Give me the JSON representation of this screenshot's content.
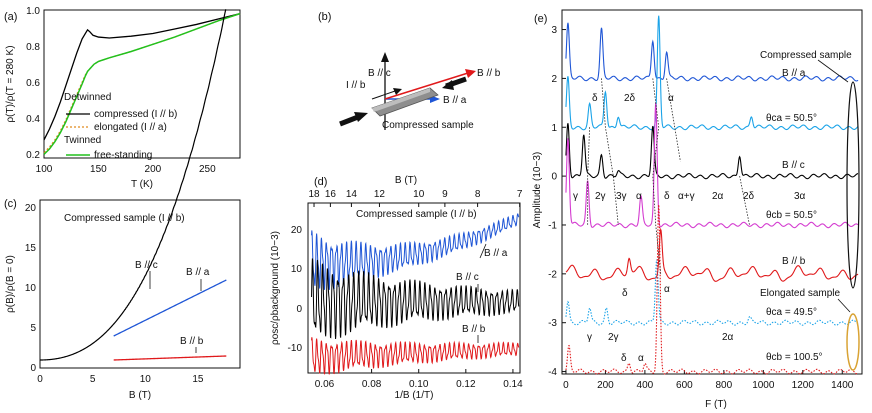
{
  "panels": {
    "a": {
      "tag": "(a)",
      "ylabel": "ρ(T)/ρ(T = 280 K)",
      "xlabel": "T (K)",
      "xticks": [
        "100",
        "150",
        "200",
        "250"
      ],
      "yticks": [
        "0.2",
        "0.4",
        "0.6",
        "0.8",
        "1.0"
      ],
      "legend": {
        "group1": "Detwinned",
        "l1": "compressed (I // b)",
        "l2": "elongated (I // a)",
        "group2": "Twinned",
        "l3": "free-standing"
      }
    },
    "b": {
      "tag": "(b)",
      "label_bc": "B // c",
      "label_bb": "B // b",
      "label_ba": "B // a",
      "label_ib": "I // b",
      "caption": "Compressed sample"
    },
    "c": {
      "tag": "(c)",
      "title": "Compressed sample (I // b)",
      "ylabel": "ρ(B)/ρ(B = 0)",
      "xlabel": "B (T)",
      "xticks": [
        "0",
        "5",
        "10",
        "15"
      ],
      "yticks": [
        "0",
        "5",
        "10",
        "15",
        "20"
      ],
      "lab_c": "B // c",
      "lab_a": "B // a",
      "lab_b": "B // b"
    },
    "d": {
      "tag": "(d)",
      "top_label": "B (T)",
      "top_ticks": [
        "18",
        "16",
        "14",
        "12",
        "10",
        "9",
        "8",
        "7"
      ],
      "title": "Compressed sample (I // b)",
      "ylabel": "ρosc/ρbackground (10−3)",
      "xlabel": "1/B (1/T)",
      "xticks": [
        "0.06",
        "0.08",
        "0.10",
        "0.12",
        "0.14"
      ],
      "yticks": [
        "-10",
        "0",
        "10",
        "20"
      ],
      "lab_a": "B // a",
      "lab_c": "B // c",
      "lab_b": "B // b"
    },
    "e": {
      "tag": "(e)",
      "ylabel": "Amplitude (10−3)",
      "xlabel": "F (T)",
      "xticks": [
        "0",
        "200",
        "400",
        "600",
        "800",
        "1000",
        "1200",
        "1400"
      ],
      "yticks": [
        "3",
        "2",
        "1",
        "0",
        "-1",
        "-2",
        "-3",
        "-4"
      ],
      "compressed": "Compressed sample",
      "elongated": "Elongated sample",
      "ba": "B  // a",
      "bc": "B  // c",
      "bb": "B  // b",
      "t1": "θca = 50.5°",
      "t2": "θcb = 50.5°",
      "t3": "θca = 49.5°",
      "t4": "θcb = 100.5°",
      "peaks": {
        "d1": "δ",
        "d2": "2δ",
        "a1": "α",
        "g1": "γ",
        "g2": "2γ",
        "g3": "3γ",
        "a2": "α",
        "d3": "δ",
        "ag": "α+γ",
        "a3": "2α",
        "d4": "2δ",
        "a4": "3α",
        "d5": "δ",
        "a5": "α",
        "g4": "γ",
        "g5": "2γ",
        "a6": "2α",
        "d6": "δ",
        "a7": "α"
      }
    }
  },
  "chart_data": [
    {
      "type": "line",
      "panel": "a",
      "xlabel": "T (K)",
      "ylabel": "ρ(T)/ρ(T = 280 K)",
      "xlim": [
        100,
        280
      ],
      "ylim": [
        0.2,
        1.02
      ],
      "series": [
        {
          "name": "compressed (I // b)",
          "color": "#000000",
          "x": [
            100,
            105,
            110,
            115,
            120,
            125,
            130,
            135,
            138,
            140,
            142,
            145,
            150,
            160,
            180,
            200,
            220,
            240,
            260,
            280
          ],
          "y": [
            0.3,
            0.36,
            0.43,
            0.51,
            0.6,
            0.69,
            0.78,
            0.86,
            0.89,
            0.91,
            0.9,
            0.88,
            0.87,
            0.865,
            0.875,
            0.89,
            0.915,
            0.94,
            0.97,
            1.0
          ]
        },
        {
          "name": "elongated (I // a)",
          "color": "#e08a1e",
          "x": [
            100,
            105,
            110,
            115,
            120,
            125,
            130,
            135,
            138,
            140,
            143,
            146,
            150,
            155,
            160,
            180,
            200,
            220,
            240,
            260,
            280
          ],
          "y": [
            0.23,
            0.26,
            0.3,
            0.35,
            0.41,
            0.48,
            0.55,
            0.62,
            0.66,
            0.68,
            0.7,
            0.72,
            0.735,
            0.745,
            0.755,
            0.79,
            0.83,
            0.87,
            0.915,
            0.96,
            1.0
          ]
        },
        {
          "name": "free-standing",
          "color": "#22c11d",
          "x": [
            100,
            105,
            110,
            115,
            120,
            125,
            130,
            135,
            138,
            140,
            143,
            146,
            150,
            155,
            160,
            180,
            200,
            220,
            240,
            260,
            280
          ],
          "y": [
            0.22,
            0.25,
            0.29,
            0.34,
            0.4,
            0.47,
            0.54,
            0.61,
            0.655,
            0.68,
            0.7,
            0.72,
            0.735,
            0.745,
            0.755,
            0.79,
            0.83,
            0.87,
            0.915,
            0.96,
            1.0
          ]
        }
      ]
    },
    {
      "type": "line",
      "panel": "c",
      "xlabel": "B (T)",
      "ylabel": "ρ(B)/ρ(B = 0)",
      "xlim": [
        0,
        19
      ],
      "ylim": [
        0,
        21
      ],
      "series": [
        {
          "name": "B // c",
          "color": "#000000",
          "x_start": 0,
          "x_end": 17.7,
          "model": "1 + 0.0595*B^2 + 0.0046*B^3 (with oscillation wiggle)"
        },
        {
          "name": "B // a",
          "color": "#1f56d6",
          "x_start": 7,
          "x_end": 17.7,
          "y_start": 4.0,
          "y_end": 11.0
        },
        {
          "name": "B // b",
          "color": "#e0191b",
          "x_start": 7,
          "x_end": 17.7,
          "y_start": 1.0,
          "y_end": 1.5
        }
      ]
    },
    {
      "type": "line",
      "panel": "d",
      "xlabel": "1/B (1/T)",
      "ylabel": "ρosc/ρbackground (10−3)",
      "xlim": [
        0.053,
        0.143
      ],
      "ylim": [
        -18,
        25
      ],
      "series": [
        {
          "name": "B // a",
          "color": "#1f56d6",
          "offset": 10,
          "approx_freq_T": 480
        },
        {
          "name": "B // c",
          "color": "#000000",
          "offset": 0,
          "approx_freq_T": 460
        },
        {
          "name": "B // b",
          "color": "#e0191b",
          "offset": -14,
          "approx_freq_T": 480
        }
      ]
    },
    {
      "type": "line",
      "panel": "e",
      "xlabel": "F (T)",
      "ylabel": "Amplitude (10−3)",
      "xlim": [
        -20,
        1500
      ],
      "ylim": [
        -4.05,
        3.4
      ],
      "series": [
        {
          "name": "B // a (compressed)",
          "color": "#1f56d6",
          "offset": 2,
          "peaks": [
            {
              "F": 10,
              "h": 1.1
            },
            {
              "F": 180,
              "h": 1.0
            },
            {
              "F": 440,
              "h": 0.8
            },
            {
              "F": 510,
              "h": 0.55
            }
          ]
        },
        {
          "name": "θca = 50.5° (compressed)",
          "color": "#1aa3e8",
          "offset": 1,
          "peaks": [
            {
              "F": 10,
              "h": 1.0
            },
            {
              "F": 120,
              "h": 0.45
            },
            {
              "F": 200,
              "h": 0.75
            },
            {
              "F": 265,
              "h": 0.25
            },
            {
              "F": 470,
              "h": 2.25
            },
            {
              "F": 940,
              "h": 0.25
            }
          ]
        },
        {
          "name": "B // c (compressed)",
          "color": "#000000",
          "offset": 0,
          "peaks": [
            {
              "F": 10,
              "h": 1.1
            },
            {
              "F": 90,
              "h": 0.85
            },
            {
              "F": 180,
              "h": 0.45
            },
            {
              "F": 265,
              "h": 0.1
            },
            {
              "F": 440,
              "h": 1.0
            },
            {
              "F": 880,
              "h": 0.45
            }
          ]
        },
        {
          "name": "θcb = 50.5° (compressed)",
          "color": "#d43bd0",
          "offset": -1,
          "peaks": [
            {
              "F": 10,
              "h": 1.8
            },
            {
              "F": 110,
              "h": 0.9
            },
            {
              "F": 380,
              "h": 0.55
            },
            {
              "F": 455,
              "h": 2.5
            }
          ]
        },
        {
          "name": "B // b (compressed)",
          "color": "#e0191b",
          "offset": -2,
          "peaks": [
            {
              "F": 320,
              "h": 0.3
            },
            {
              "F": 480,
              "h": 0.85
            }
          ]
        },
        {
          "name": "θca = 49.5° (elongated)",
          "color": "#1aa3e8",
          "offset": -3,
          "peaks": [
            {
              "F": 10,
              "h": 0.45
            },
            {
              "F": 120,
              "h": 0.3
            },
            {
              "F": 205,
              "h": 0.3
            },
            {
              "F": 460,
              "h": 1.3
            },
            {
              "F": 930,
              "h": 0.1
            }
          ]
        },
        {
          "name": "θcb = 100.5° (elongated)",
          "color": "#e0191b",
          "offset": -4,
          "peaks": [
            {
              "F": 15,
              "h": 0.5
            },
            {
              "F": 320,
              "h": 0.2
            },
            {
              "F": 400,
              "h": 0.15
            },
            {
              "F": 470,
              "h": 3.4
            }
          ]
        }
      ]
    }
  ]
}
